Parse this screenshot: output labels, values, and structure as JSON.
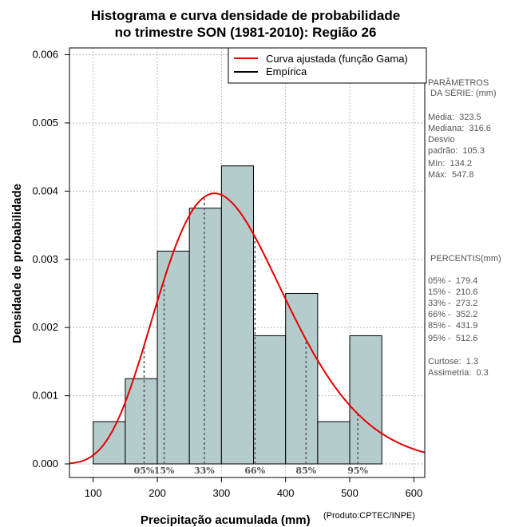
{
  "colors": {
    "bar_fill": "#b5cccc",
    "bar_stroke": "#000000",
    "curve": "#e60000",
    "grid": "#bbbbbb",
    "percentile_line": "#555555",
    "side_text": "#555555"
  },
  "chart_data": {
    "type": "bar",
    "title": "Histograma e curva densidade de probabilidade",
    "subtitle": "no trimestre SON (1981-2010): Região 26",
    "xlabel": "Precipitação acumulada (mm)",
    "ylabel": "Densidade de probabilidade",
    "credit": "(Produto:CPTEC/INPE)",
    "xlim": [
      63,
      617
    ],
    "ylim": [
      0,
      0.0061
    ],
    "x_ticks": [
      100,
      200,
      300,
      400,
      500,
      600
    ],
    "x_tick_labels": [
      "100",
      "200",
      "300",
      "400",
      "500",
      "600"
    ],
    "y_ticks": [
      0,
      0.001,
      0.002,
      0.003,
      0.004,
      0.005,
      0.006
    ],
    "y_tick_labels": [
      "0.000",
      "0.001",
      "0.002",
      "0.003",
      "0.004",
      "0.005",
      "0.006"
    ],
    "grid": true,
    "histogram": {
      "bin_edges": [
        100,
        150,
        200,
        250,
        300,
        350,
        400,
        450,
        500,
        550
      ],
      "density": [
        0.00062,
        0.00125,
        0.00312,
        0.00375,
        0.00437,
        0.00188,
        0.0025,
        0.00062,
        0.00188
      ]
    },
    "fitted_curve": {
      "name": "Curva ajustada (função Gama)",
      "distribution": "gamma",
      "mean": 323.5,
      "sd": 105.3
    },
    "legend": {
      "position": "top-right",
      "entries": [
        "Curva ajustada (função Gama)",
        "Empírica"
      ]
    },
    "percentiles": [
      {
        "label": "05%",
        "value": 179.4
      },
      {
        "label": "15%",
        "value": 210.6
      },
      {
        "label": "33%",
        "value": 273.2
      },
      {
        "label": "66%",
        "value": 352.2
      },
      {
        "label": "85%",
        "value": 431.9
      },
      {
        "label": "95%",
        "value": 512.6
      }
    ]
  },
  "parameters": {
    "heading_line1": "PARÂMETROS",
    "heading_line2": " DA SÉRIE: (mm)",
    "media": "Média:  323.5",
    "mediana": "Mediana:  316.6",
    "desvio_line1": "Desvio",
    "desvio_line2": "padrão:  105.3",
    "min": "Mín:  134.2",
    "max": "Máx:  547.8"
  },
  "percentis_panel": {
    "heading": " PERCENTIS(mm)",
    "rows": [
      "05% -  179.4",
      "15% -  210.6",
      "33% -  273.2",
      "66% -  352.2",
      "85% -  431.9",
      "95% -  512.6"
    ],
    "curtose": "Curtose:  1.3",
    "assimetria": "Assimetria:  0.3"
  }
}
